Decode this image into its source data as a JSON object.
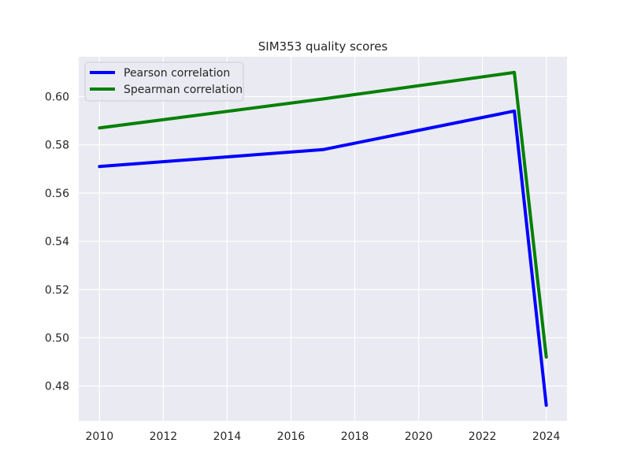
{
  "chart_data": {
    "type": "line",
    "title": "SIM353 quality scores",
    "xlabel": "",
    "ylabel": "",
    "xlim": [
      2009.35,
      2024.65
    ],
    "ylim": [
      0.4655,
      0.6165
    ],
    "x_ticks": [
      2010,
      2012,
      2014,
      2016,
      2018,
      2020,
      2022,
      2024
    ],
    "y_ticks": [
      0.48,
      0.5,
      0.52,
      0.54,
      0.56,
      0.58,
      0.6
    ],
    "y_tick_labels": [
      "0.48",
      "0.50",
      "0.52",
      "0.54",
      "0.56",
      "0.58",
      "0.60"
    ],
    "grid": true,
    "legend_position": "top-left",
    "background": "#eaeaf2",
    "series": [
      {
        "name": "Pearson correlation",
        "color": "#0000ff",
        "points": [
          {
            "x": 2010,
            "y": 0.571
          },
          {
            "x": 2017,
            "y": 0.578
          },
          {
            "x": 2023,
            "y": 0.594
          },
          {
            "x": 2024,
            "y": 0.472
          }
        ]
      },
      {
        "name": "Spearman correlation",
        "color": "#008000",
        "points": [
          {
            "x": 2010,
            "y": 0.587
          },
          {
            "x": 2017,
            "y": 0.599
          },
          {
            "x": 2023,
            "y": 0.61
          },
          {
            "x": 2024,
            "y": 0.492
          }
        ]
      }
    ]
  }
}
